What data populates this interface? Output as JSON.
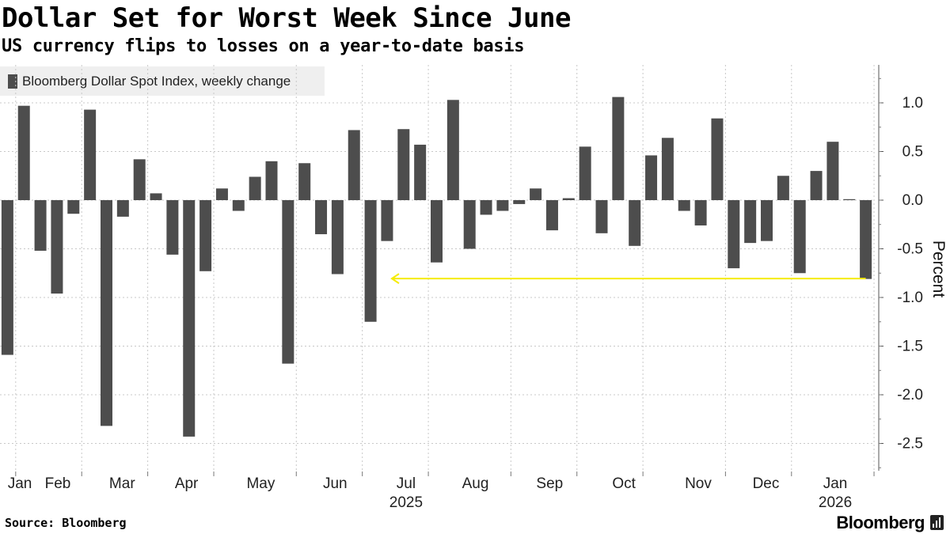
{
  "header": {
    "title": "Dollar Set for Worst Week Since June",
    "subtitle": "US currency flips to losses on a year-to-date basis"
  },
  "footer": {
    "source": "Source: Bloomberg",
    "brand": "Bloomberg"
  },
  "colors": {
    "bar": "#4d4d4d",
    "grid": "#c8c8c8",
    "highlight_arrow": "#f5ec00",
    "legend_bg": "#efefef"
  },
  "chart_data": {
    "type": "bar",
    "title": "Dollar Set for Worst Week Since June",
    "subtitle": "US currency flips to losses on a year-to-date basis",
    "ylabel": "Percent",
    "xlabel": "",
    "ylim": [
      -2.75,
      1.4
    ],
    "yticks": [
      1.0,
      0.5,
      0.0,
      -0.5,
      -1.0,
      -1.5,
      -2.0,
      -2.5
    ],
    "ytick_labels": [
      "1.0",
      "0.5",
      "0.0",
      "-0.5",
      "-1.0",
      "-1.5",
      "-2.0",
      "-2.5"
    ],
    "grid": true,
    "legend_position": "top-left",
    "series": [
      {
        "name": "Bloomberg Dollar Spot Index, weekly change",
        "values": [
          -1.59,
          0.97,
          -0.52,
          -0.96,
          -0.14,
          0.93,
          -2.32,
          -0.17,
          0.42,
          0.07,
          -0.56,
          -2.43,
          -0.73,
          0.12,
          -0.11,
          0.24,
          0.4,
          -1.68,
          0.38,
          -0.35,
          -0.76,
          0.72,
          -1.25,
          -0.42,
          0.73,
          0.57,
          -0.64,
          1.03,
          -0.5,
          -0.15,
          -0.11,
          -0.04,
          0.12,
          -0.31,
          0.02,
          0.55,
          -0.34,
          1.06,
          -0.47,
          0.46,
          0.64,
          -0.11,
          -0.26,
          0.84,
          -0.7,
          -0.44,
          -0.42,
          0.25,
          -0.75,
          0.3,
          0.6,
          0.01,
          -0.81
        ]
      }
    ],
    "month_labels": [
      "Jan",
      "Feb",
      "Mar",
      "Apr",
      "May",
      "Jun",
      "Jul",
      "Aug",
      "Sep",
      "Oct",
      "Nov",
      "Dec",
      "Jan"
    ],
    "month_label_positions": [
      1.2,
      3.5,
      7.4,
      11.3,
      15.8,
      20.3,
      24.6,
      28.8,
      33.3,
      37.8,
      42.3,
      46.4,
      50.6
    ],
    "month_boundaries": [
      1,
      5,
      9,
      13,
      18,
      22,
      26,
      31,
      35,
      39,
      44,
      48,
      53
    ],
    "year_labels": [
      {
        "label": "2025",
        "position": 24.6
      },
      {
        "label": "2026",
        "position": 50.6
      }
    ],
    "annotation": {
      "type": "arrow",
      "description": "Latest weekly drop compared back to June",
      "y_value": -0.81,
      "from_index": 52,
      "to_index": 23
    }
  }
}
